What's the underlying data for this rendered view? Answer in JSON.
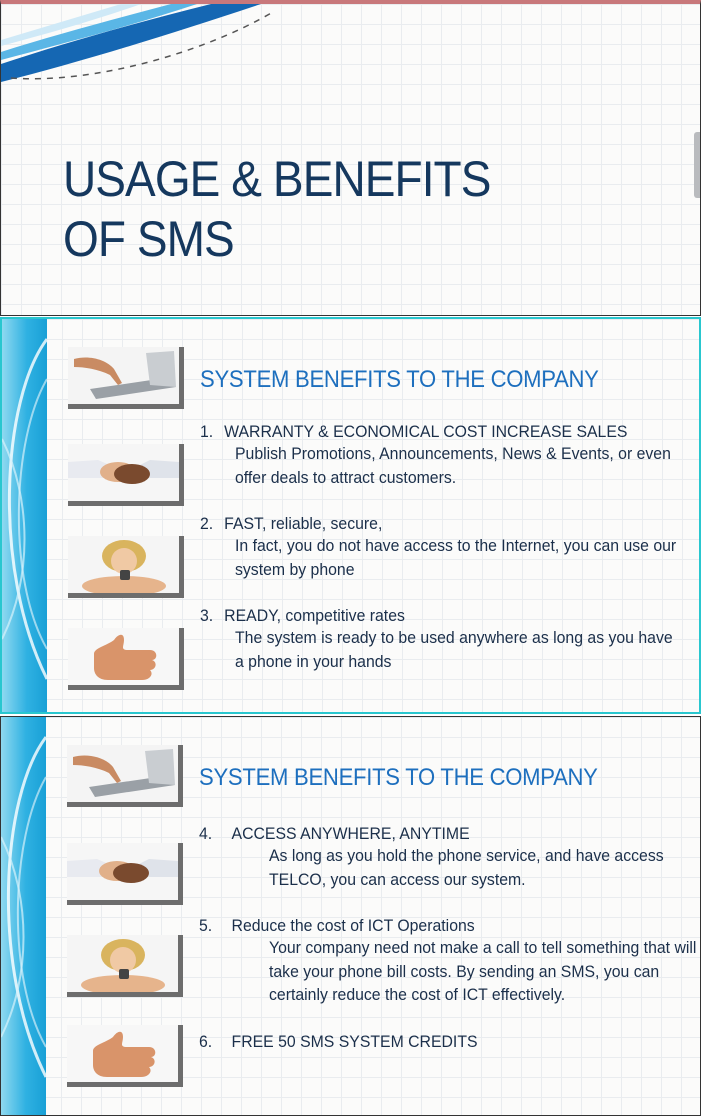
{
  "slide1": {
    "title_line1": "USAGE & BENEFITS",
    "title_line2": "OF SMS"
  },
  "slide2": {
    "heading": "SYSTEM BENEFITS TO THE COMPANY",
    "items": [
      {
        "num": "1.",
        "title": "WARRANTY & ECONOMICAL COST INCREASE SALES",
        "desc": "Publish Promotions, Announcements, News & Events, or even offer deals to attract customers."
      },
      {
        "num": "2.",
        "title": "FAST, reliable, secure,",
        "desc": "In fact, you do not have access to the Internet, you can use our system by phone"
      },
      {
        "num": "3.",
        "title": "READY, competitive rates",
        "desc": "The system is ready to be used anywhere as long as you have a phone in your hands"
      }
    ]
  },
  "slide3": {
    "heading": "SYSTEM BENEFITS TO THE COMPANY",
    "items": [
      {
        "num": "4.",
        "title": "ACCESS ANYWHERE, ANYTIME",
        "desc": "As long as you hold the phone service, and have access TELCO, you can access our system."
      },
      {
        "num": "5.",
        "title": "Reduce the cost of ICT Operations",
        "desc": "Your company need not make a call to tell something that will take your phone bill costs. By sending an SMS, you can certainly reduce the cost of ICT effectively."
      },
      {
        "num": "6.",
        "title": "FREE 50 SMS SYSTEM CREDITS",
        "desc": ""
      }
    ]
  },
  "colors": {
    "title": "#15385e",
    "heading": "#1d6fbe",
    "band": "#2fb1e2",
    "slide2_border": "#29c7cf"
  },
  "icons": [
    "hand-typing-laptop-icon",
    "handshake-icon",
    "woman-with-phone-icon",
    "thumbs-up-icon"
  ]
}
